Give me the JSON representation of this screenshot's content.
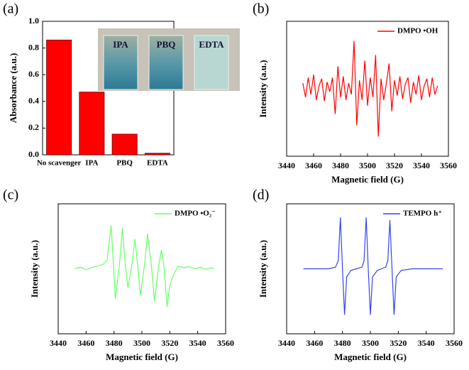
{
  "chart_data": [
    {
      "type": "bar",
      "panel_label": "(a)",
      "ylabel": "Absorbance (a.u.)",
      "categories": [
        "No scavenger",
        "IPA",
        "PBQ",
        "EDTA"
      ],
      "values": [
        0.86,
        0.47,
        0.155,
        0.012
      ],
      "color": "#ff0000",
      "ylim": [
        0,
        1.0
      ],
      "yticks": [
        {
          "value": 0,
          "label": "0.0"
        },
        0.2,
        0.4,
        0.6,
        0.8,
        {
          "value": 1.0,
          "label": "1.0"
        }
      ],
      "inset_labels": [
        "IPA",
        "PBQ",
        "EDTA"
      ],
      "grid": false
    },
    {
      "type": "line",
      "panel_label": "(b)",
      "xlabel": "Magnetic field (G)",
      "ylabel": "Intensity (a.u.)",
      "x": [
        3452,
        3454,
        3456,
        3458,
        3460,
        3462,
        3464,
        3466,
        3468,
        3470,
        3472,
        3474,
        3476,
        3478,
        3480,
        3482,
        3484,
        3486,
        3488,
        3490,
        3492,
        3494,
        3496,
        3498,
        3500,
        3502,
        3504,
        3506,
        3508,
        3510,
        3512,
        3514,
        3516,
        3518,
        3520,
        3522,
        3524,
        3526,
        3528,
        3530,
        3532,
        3534,
        3536,
        3538,
        3540,
        3542,
        3544,
        3546,
        3548,
        3550,
        3552
      ],
      "series": [
        {
          "name": "DMPO •OH",
          "color": "#ff0000",
          "values": [
            0.1,
            -0.15,
            0.2,
            -0.1,
            0.25,
            -0.2,
            0.05,
            0.18,
            -0.22,
            0.12,
            -0.05,
            0.2,
            -0.45,
            0.4,
            -0.15,
            0.22,
            -0.2,
            0.1,
            -0.1,
            0.85,
            -0.65,
            0.15,
            -0.2,
            0.5,
            -0.3,
            0.2,
            -0.15,
            0.6,
            -0.85,
            0.18,
            -0.2,
            0.1,
            0.45,
            -0.4,
            0.15,
            -0.12,
            0.22,
            -0.18,
            0.08,
            0.2,
            -0.25,
            0.12,
            -0.1,
            0.24,
            -0.2,
            0.05,
            0.18,
            -0.15,
            0.2,
            -0.1,
            0.05
          ]
        }
      ],
      "xlim": [
        3440,
        3560
      ],
      "xticks": [
        3440,
        3460,
        3480,
        3500,
        3520,
        3540,
        3560
      ],
      "ylim": [
        -1.2,
        1.2
      ],
      "legend": "upper right",
      "grid": false
    },
    {
      "type": "line",
      "panel_label": "(c)",
      "xlabel": "Magnetic field (G)",
      "ylabel": "Intensity (a.u.)",
      "x": [
        3452,
        3456,
        3460,
        3464,
        3468,
        3472,
        3475,
        3478,
        3481,
        3484,
        3486,
        3488,
        3490,
        3493,
        3495,
        3497,
        3499,
        3502,
        3504,
        3507,
        3509,
        3512,
        3514,
        3516,
        3518,
        3520,
        3523,
        3526,
        3530,
        3534,
        3538,
        3542,
        3546,
        3550,
        3552
      ],
      "series": [
        {
          "name": "DMPO •O₂⁻",
          "color": "#66ff66",
          "values": [
            0,
            0.03,
            -0.02,
            0.02,
            0.05,
            0.08,
            0.15,
            0.8,
            -0.55,
            0.1,
            0.75,
            0.1,
            -0.35,
            0.1,
            0.55,
            0.05,
            -0.5,
            0.1,
            0.65,
            0,
            -0.6,
            0.05,
            0.35,
            0,
            -0.7,
            -0.3,
            -0.1,
            0.05,
            0.02,
            0.04,
            0,
            0.03,
            -0.01,
            0.02,
            0
          ]
        }
      ],
      "xlim": [
        3440,
        3560
      ],
      "xticks": [
        3440,
        3460,
        3480,
        3500,
        3520,
        3540,
        3560
      ],
      "ylim": [
        -1.2,
        1.2
      ],
      "legend": "upper right",
      "grid": false
    },
    {
      "type": "line",
      "panel_label": "(d)",
      "xlabel": "Magnetic field (G)",
      "ylabel": "Intensity (a.u.)",
      "x": [
        3452,
        3470,
        3475,
        3477,
        3478.5,
        3480,
        3481.5,
        3483,
        3486,
        3490,
        3494,
        3495.5,
        3497,
        3498.5,
        3500,
        3501.5,
        3505,
        3508,
        3511,
        3512.5,
        3514,
        3515.5,
        3517,
        3518.5,
        3522,
        3530,
        3552
      ],
      "series": [
        {
          "name": "TEMPO h⁺",
          "color": "#3344ee",
          "values": [
            0,
            0,
            0.03,
            0.15,
            0.95,
            0,
            -0.85,
            -0.15,
            -0.03,
            0,
            0.03,
            0.15,
            0.95,
            0,
            -0.85,
            -0.15,
            -0.03,
            0,
            0.03,
            0.15,
            0.9,
            0,
            -0.85,
            -0.15,
            -0.03,
            0,
            0
          ]
        }
      ],
      "xlim": [
        3440,
        3560
      ],
      "xticks": [
        3440,
        3460,
        3480,
        3500,
        3520,
        3540,
        3560
      ],
      "ylim": [
        -1.2,
        1.2
      ],
      "legend": "upper right",
      "grid": false
    }
  ]
}
